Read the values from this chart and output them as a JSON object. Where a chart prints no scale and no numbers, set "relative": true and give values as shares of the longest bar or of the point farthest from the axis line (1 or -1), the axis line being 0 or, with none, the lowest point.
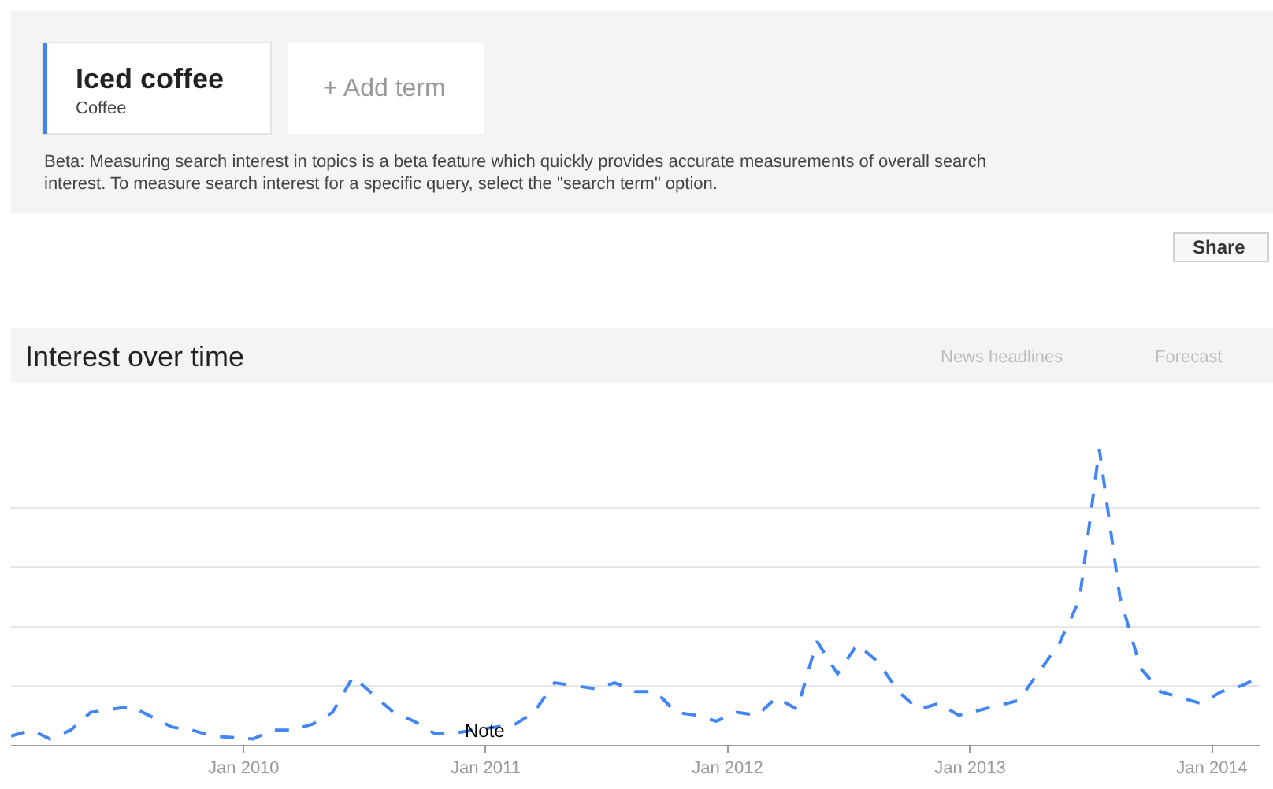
{
  "chart_data": {
    "type": "line",
    "title": "Interest over time",
    "relative": true,
    "color": "#4285f4",
    "line_style": "dashed",
    "marker": "none",
    "grid": "y",
    "legend": false,
    "x": [
      "2009-01-15",
      "2009-02-15",
      "2009-03-15",
      "2009-04-15",
      "2009-05-15",
      "2009-07-15",
      "2009-09-15",
      "2009-10-15",
      "2009-11-15",
      "2010-01-15",
      "2010-02-15",
      "2010-03-15",
      "2010-04-15",
      "2010-05-15",
      "2010-06-15",
      "2010-08-15",
      "2010-09-15",
      "2010-10-15",
      "2010-11-15",
      "2010-12-15",
      "2011-02-15",
      "2011-03-15",
      "2011-04-15",
      "2011-06-15",
      "2011-07-15",
      "2011-08-15",
      "2011-09-15",
      "2011-10-15",
      "2011-11-15",
      "2011-12-15",
      "2012-01-15",
      "2012-02-15",
      "2012-03-15",
      "2012-04-15",
      "2012-05-15",
      "2012-06-15",
      "2012-07-15",
      "2012-08-15",
      "2012-09-15",
      "2012-10-15",
      "2012-11-15",
      "2012-12-15",
      "2013-03-15",
      "2013-05-15",
      "2013-06-15",
      "2013-07-15",
      "2013-08-15",
      "2013-09-15",
      "2013-10-15",
      "2013-12-15",
      "2014-01-15",
      "2014-02-15",
      "2014-03-15"
    ],
    "values": [
      0.03,
      0.05,
      0.02,
      0.05,
      0.11,
      0.13,
      0.06,
      0.05,
      0.03,
      0.02,
      0.05,
      0.05,
      0.07,
      0.11,
      0.23,
      0.11,
      0.08,
      0.04,
      0.04,
      0.05,
      0.07,
      0.11,
      0.21,
      0.19,
      0.21,
      0.18,
      0.18,
      0.11,
      0.1,
      0.08,
      0.11,
      0.1,
      0.16,
      0.12,
      0.35,
      0.24,
      0.34,
      0.28,
      0.18,
      0.12,
      0.14,
      0.1,
      0.15,
      0.34,
      0.49,
      1,
      0.5,
      0.26,
      0.18,
      0.14,
      0.18,
      0.2,
      0.23
    ],
    "xlim": [
      "2009-01-15",
      "2014-03-15"
    ],
    "xticks": [
      {
        "value": "2010-01-01",
        "label": "Jan 2010"
      },
      {
        "value": "2011-01-01",
        "label": "Jan 2011"
      },
      {
        "value": "2012-01-01",
        "label": "Jan 2012"
      },
      {
        "value": "2013-01-01",
        "label": "Jan 2013"
      },
      {
        "value": "2014-01-01",
        "label": "Jan 2014"
      }
    ],
    "annotations": [
      "Iced coffee",
      "Coffee",
      "+ Add term",
      "Beta: Measuring search interest in topics is a beta feature which quickly provides accurate measurements of overall search",
      "interest. To measure search interest for a specific query, select the \"search term\" option.",
      "Share",
      "News headlines",
      "Forecast",
      {
        "text": "Note",
        "x": "2011-01-01",
        "y": 0.05
      }
    ]
  }
}
